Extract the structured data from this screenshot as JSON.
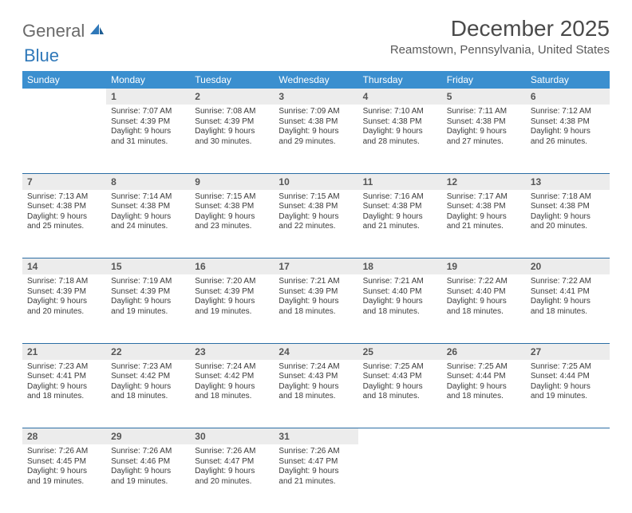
{
  "logo": {
    "general": "General",
    "blue": "Blue"
  },
  "header": {
    "title": "December 2025",
    "location": "Reamstown, Pennsylvania, United States"
  },
  "colors": {
    "header_bg": "#3b8fcf",
    "header_text": "#ffffff",
    "daynum_bg": "#ececec",
    "row_border": "#2c6ea5",
    "title_color": "#4a4a4a",
    "location_color": "#5a5a5a",
    "logo_gray": "#6a6a6a",
    "logo_blue": "#2f78b9"
  },
  "day_names": [
    "Sunday",
    "Monday",
    "Tuesday",
    "Wednesday",
    "Thursday",
    "Friday",
    "Saturday"
  ],
  "weeks": [
    {
      "nums": [
        "",
        "1",
        "2",
        "3",
        "4",
        "5",
        "6"
      ],
      "cells": [
        "",
        "Sunrise: 7:07 AM\nSunset: 4:39 PM\nDaylight: 9 hours and 31 minutes.",
        "Sunrise: 7:08 AM\nSunset: 4:39 PM\nDaylight: 9 hours and 30 minutes.",
        "Sunrise: 7:09 AM\nSunset: 4:38 PM\nDaylight: 9 hours and 29 minutes.",
        "Sunrise: 7:10 AM\nSunset: 4:38 PM\nDaylight: 9 hours and 28 minutes.",
        "Sunrise: 7:11 AM\nSunset: 4:38 PM\nDaylight: 9 hours and 27 minutes.",
        "Sunrise: 7:12 AM\nSunset: 4:38 PM\nDaylight: 9 hours and 26 minutes."
      ]
    },
    {
      "nums": [
        "7",
        "8",
        "9",
        "10",
        "11",
        "12",
        "13"
      ],
      "cells": [
        "Sunrise: 7:13 AM\nSunset: 4:38 PM\nDaylight: 9 hours and 25 minutes.",
        "Sunrise: 7:14 AM\nSunset: 4:38 PM\nDaylight: 9 hours and 24 minutes.",
        "Sunrise: 7:15 AM\nSunset: 4:38 PM\nDaylight: 9 hours and 23 minutes.",
        "Sunrise: 7:15 AM\nSunset: 4:38 PM\nDaylight: 9 hours and 22 minutes.",
        "Sunrise: 7:16 AM\nSunset: 4:38 PM\nDaylight: 9 hours and 21 minutes.",
        "Sunrise: 7:17 AM\nSunset: 4:38 PM\nDaylight: 9 hours and 21 minutes.",
        "Sunrise: 7:18 AM\nSunset: 4:38 PM\nDaylight: 9 hours and 20 minutes."
      ]
    },
    {
      "nums": [
        "14",
        "15",
        "16",
        "17",
        "18",
        "19",
        "20"
      ],
      "cells": [
        "Sunrise: 7:18 AM\nSunset: 4:39 PM\nDaylight: 9 hours and 20 minutes.",
        "Sunrise: 7:19 AM\nSunset: 4:39 PM\nDaylight: 9 hours and 19 minutes.",
        "Sunrise: 7:20 AM\nSunset: 4:39 PM\nDaylight: 9 hours and 19 minutes.",
        "Sunrise: 7:21 AM\nSunset: 4:39 PM\nDaylight: 9 hours and 18 minutes.",
        "Sunrise: 7:21 AM\nSunset: 4:40 PM\nDaylight: 9 hours and 18 minutes.",
        "Sunrise: 7:22 AM\nSunset: 4:40 PM\nDaylight: 9 hours and 18 minutes.",
        "Sunrise: 7:22 AM\nSunset: 4:41 PM\nDaylight: 9 hours and 18 minutes."
      ]
    },
    {
      "nums": [
        "21",
        "22",
        "23",
        "24",
        "25",
        "26",
        "27"
      ],
      "cells": [
        "Sunrise: 7:23 AM\nSunset: 4:41 PM\nDaylight: 9 hours and 18 minutes.",
        "Sunrise: 7:23 AM\nSunset: 4:42 PM\nDaylight: 9 hours and 18 minutes.",
        "Sunrise: 7:24 AM\nSunset: 4:42 PM\nDaylight: 9 hours and 18 minutes.",
        "Sunrise: 7:24 AM\nSunset: 4:43 PM\nDaylight: 9 hours and 18 minutes.",
        "Sunrise: 7:25 AM\nSunset: 4:43 PM\nDaylight: 9 hours and 18 minutes.",
        "Sunrise: 7:25 AM\nSunset: 4:44 PM\nDaylight: 9 hours and 18 minutes.",
        "Sunrise: 7:25 AM\nSunset: 4:44 PM\nDaylight: 9 hours and 19 minutes."
      ]
    },
    {
      "nums": [
        "28",
        "29",
        "30",
        "31",
        "",
        "",
        ""
      ],
      "cells": [
        "Sunrise: 7:26 AM\nSunset: 4:45 PM\nDaylight: 9 hours and 19 minutes.",
        "Sunrise: 7:26 AM\nSunset: 4:46 PM\nDaylight: 9 hours and 19 minutes.",
        "Sunrise: 7:26 AM\nSunset: 4:47 PM\nDaylight: 9 hours and 20 minutes.",
        "Sunrise: 7:26 AM\nSunset: 4:47 PM\nDaylight: 9 hours and 21 minutes.",
        "",
        "",
        ""
      ]
    }
  ]
}
